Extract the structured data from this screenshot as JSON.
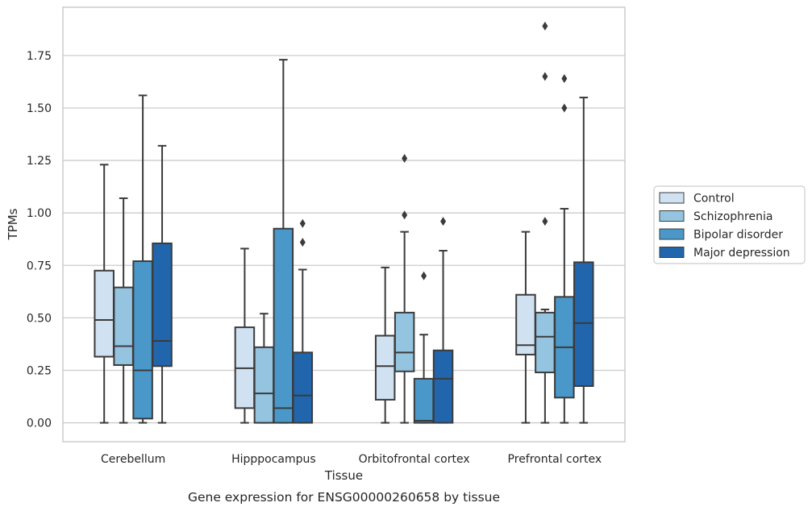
{
  "chart_data": {
    "type": "box",
    "title": "",
    "caption": "Gene expression for ENSG00000260658 by tissue",
    "xlabel": "Tissue",
    "ylabel": "TPMs",
    "ylim": [
      -0.09,
      1.98
    ],
    "yticks": [
      "0.00",
      "0.25",
      "0.50",
      "0.75",
      "1.00",
      "1.25",
      "1.50",
      "1.75"
    ],
    "ytick_values": [
      0,
      0.25,
      0.5,
      0.75,
      1.0,
      1.25,
      1.5,
      1.75
    ],
    "categories": [
      "Cerebellum",
      "Hipppocampus",
      "Orbitofrontal cortex",
      "Prefrontal cortex"
    ],
    "grid": true,
    "legend_position": "right",
    "series": [
      {
        "name": "Control",
        "color": "#d0e1f2",
        "boxes": [
          {
            "whislo": 0.0,
            "q1": 0.315,
            "med": 0.49,
            "q3": 0.725,
            "whishi": 1.23,
            "fliers": []
          },
          {
            "whislo": 0.0,
            "q1": 0.07,
            "med": 0.26,
            "q3": 0.455,
            "whishi": 0.83,
            "fliers": []
          },
          {
            "whislo": 0.0,
            "q1": 0.11,
            "med": 0.27,
            "q3": 0.415,
            "whishi": 0.74,
            "fliers": []
          },
          {
            "whislo": 0.0,
            "q1": 0.325,
            "med": 0.37,
            "q3": 0.61,
            "whishi": 0.91,
            "fliers": []
          }
        ]
      },
      {
        "name": "Schizophrenia",
        "color": "#94c4df",
        "boxes": [
          {
            "whislo": 0.0,
            "q1": 0.275,
            "med": 0.365,
            "q3": 0.645,
            "whishi": 1.07,
            "fliers": []
          },
          {
            "whislo": 0.0,
            "q1": 0.0,
            "med": 0.14,
            "q3": 0.36,
            "whishi": 0.52,
            "fliers": []
          },
          {
            "whislo": 0.0,
            "q1": 0.245,
            "med": 0.335,
            "q3": 0.525,
            "whishi": 0.91,
            "fliers": [
              0.99,
              1.26
            ]
          },
          {
            "whislo": 0.0,
            "q1": 0.24,
            "med": 0.41,
            "q3": 0.525,
            "whishi": 0.54,
            "fliers": [
              0.96,
              1.65,
              1.89
            ]
          }
        ]
      },
      {
        "name": "Bipolar disorder",
        "color": "#4a98c9",
        "boxes": [
          {
            "whislo": 0.0,
            "q1": 0.02,
            "med": 0.25,
            "q3": 0.77,
            "whishi": 1.56,
            "fliers": []
          },
          {
            "whislo": 0.0,
            "q1": 0.0,
            "med": 0.07,
            "q3": 0.925,
            "whishi": 1.73,
            "fliers": []
          },
          {
            "whislo": 0.0,
            "q1": 0.0,
            "med": 0.01,
            "q3": 0.21,
            "whishi": 0.42,
            "fliers": [
              0.7
            ]
          },
          {
            "whislo": 0.0,
            "q1": 0.12,
            "med": 0.36,
            "q3": 0.6,
            "whishi": 1.02,
            "fliers": [
              1.5,
              1.64
            ]
          }
        ]
      },
      {
        "name": "Major depression",
        "color": "#2166ac",
        "boxes": [
          {
            "whislo": 0.0,
            "q1": 0.27,
            "med": 0.39,
            "q3": 0.855,
            "whishi": 1.32,
            "fliers": []
          },
          {
            "whislo": 0.0,
            "q1": 0.0,
            "med": 0.13,
            "q3": 0.335,
            "whishi": 0.73,
            "fliers": [
              0.86,
              0.95
            ]
          },
          {
            "whislo": 0.0,
            "q1": 0.0,
            "med": 0.21,
            "q3": 0.345,
            "whishi": 0.82,
            "fliers": [
              0.96
            ]
          },
          {
            "whislo": 0.0,
            "q1": 0.175,
            "med": 0.475,
            "q3": 0.765,
            "whishi": 1.55,
            "fliers": []
          }
        ]
      }
    ]
  }
}
